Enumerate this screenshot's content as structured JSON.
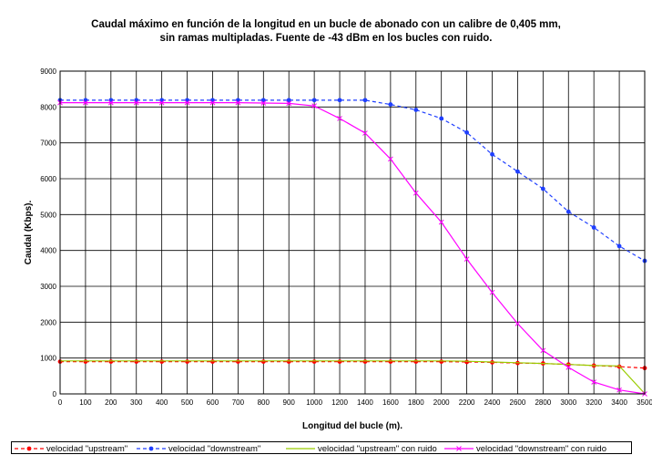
{
  "chart_data": {
    "type": "line",
    "title_line1": "Caudal máximo en función de la longitud en un bucle de abonado con un calibre de 0,405 mm,",
    "title_line2": "sin ramas multipladas. Fuente de -43 dBm en los bucles con ruido.",
    "xlabel": "Longitud del bucle (m).",
    "ylabel": "Caudal (Kbps).",
    "xlim": [
      0,
      3500
    ],
    "ylim": [
      0,
      9000
    ],
    "x_ticks": [
      0,
      100,
      200,
      300,
      400,
      500,
      600,
      700,
      800,
      900,
      1000,
      1200,
      1400,
      1600,
      1800,
      2000,
      2200,
      2400,
      2600,
      2800,
      3000,
      3200,
      3400,
      3500
    ],
    "y_ticks": [
      0,
      1000,
      2000,
      3000,
      4000,
      5000,
      6000,
      7000,
      8000,
      9000
    ],
    "grid": true,
    "legend_position": "bottom",
    "series": [
      {
        "name": "velocidad \"upstream\"",
        "color": "#ff0000",
        "style": "dashed",
        "marker": "dot",
        "values": [
          900,
          900,
          900,
          900,
          900,
          900,
          900,
          900,
          900,
          900,
          900,
          900,
          900,
          900,
          900,
          900,
          890,
          880,
          860,
          850,
          820,
          790,
          760,
          720
        ]
      },
      {
        "name": "velocidad \"downstream\"",
        "color": "#1f3fff",
        "style": "dashed",
        "marker": "dot",
        "values": [
          8190,
          8190,
          8190,
          8190,
          8190,
          8190,
          8190,
          8190,
          8190,
          8190,
          8190,
          8190,
          8190,
          8070,
          7920,
          7680,
          7290,
          6680,
          6200,
          5720,
          5080,
          4640,
          4120,
          3710
        ]
      },
      {
        "name": "velocidad \"upstream\" con ruido",
        "color": "#99cc00",
        "style": "solid",
        "marker": "none",
        "values": [
          920,
          920,
          920,
          920,
          920,
          920,
          920,
          920,
          920,
          920,
          920,
          920,
          920,
          920,
          920,
          920,
          910,
          890,
          870,
          850,
          820,
          790,
          780,
          10
        ]
      },
      {
        "name": "velocidad \"downstream\" con ruido",
        "color": "#ff00ff",
        "style": "solid",
        "marker": "x",
        "values": [
          8120,
          8120,
          8120,
          8120,
          8120,
          8120,
          8120,
          8120,
          8110,
          8100,
          8030,
          7680,
          7270,
          6550,
          5600,
          4790,
          3760,
          2830,
          1960,
          1210,
          740,
          330,
          110,
          0
        ]
      }
    ]
  }
}
